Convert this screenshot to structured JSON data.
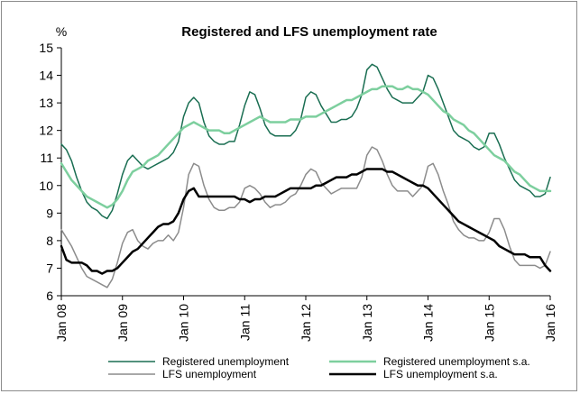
{
  "chart_data": {
    "type": "line",
    "title": "Registered and LFS unemployment rate",
    "ylabel": "%",
    "ylim": [
      6,
      15
    ],
    "yticks": [
      6,
      7,
      8,
      9,
      10,
      11,
      12,
      13,
      14,
      15
    ],
    "xlim": [
      0,
      96
    ],
    "xtick_labels": [
      "Jan 08",
      "Jan 09",
      "Jan 10",
      "Jan 11",
      "Jan 12",
      "Jan 13",
      "Jan 14",
      "Jan 15",
      "Jan 16"
    ],
    "x_unit": "months since Jan 08",
    "legend_position": "bottom",
    "series": [
      {
        "name": "Registered unemployment",
        "color": "#1a6e52",
        "width": 1.5,
        "values": [
          11.5,
          11.3,
          10.9,
          10.3,
          9.8,
          9.4,
          9.2,
          9.1,
          8.9,
          8.8,
          9.1,
          9.7,
          10.4,
          10.9,
          11.1,
          10.9,
          10.7,
          10.6,
          10.7,
          10.8,
          10.9,
          11.0,
          11.2,
          11.6,
          12.5,
          13.0,
          13.2,
          13.0,
          12.3,
          11.8,
          11.6,
          11.5,
          11.5,
          11.6,
          11.6,
          12.2,
          12.9,
          13.4,
          13.3,
          12.8,
          12.2,
          11.9,
          11.8,
          11.8,
          11.8,
          11.8,
          12.0,
          12.4,
          13.2,
          13.4,
          13.3,
          12.9,
          12.6,
          12.3,
          12.3,
          12.4,
          12.4,
          12.5,
          12.8,
          13.3,
          14.2,
          14.4,
          14.3,
          13.9,
          13.5,
          13.2,
          13.1,
          13.0,
          13.0,
          13.0,
          13.2,
          13.4,
          14.0,
          13.9,
          13.5,
          13.0,
          12.5,
          12.0,
          11.8,
          11.7,
          11.6,
          11.4,
          11.3,
          11.4,
          11.9,
          11.9,
          11.5,
          11.0,
          10.6,
          10.2,
          10.0,
          9.9,
          9.8,
          9.6,
          9.6,
          9.7,
          10.3
        ]
      },
      {
        "name": "Registered unemployment s.a.",
        "color": "#7dcf9e",
        "width": 2.5,
        "values": [
          10.8,
          10.5,
          10.2,
          10.0,
          9.8,
          9.6,
          9.5,
          9.4,
          9.3,
          9.2,
          9.3,
          9.5,
          9.8,
          10.2,
          10.5,
          10.6,
          10.7,
          10.9,
          11.0,
          11.1,
          11.3,
          11.5,
          11.7,
          11.9,
          12.1,
          12.2,
          12.3,
          12.2,
          12.1,
          12.0,
          12.0,
          12.0,
          11.9,
          11.9,
          12.0,
          12.1,
          12.2,
          12.3,
          12.4,
          12.5,
          12.4,
          12.3,
          12.3,
          12.3,
          12.3,
          12.4,
          12.4,
          12.4,
          12.5,
          12.5,
          12.5,
          12.6,
          12.7,
          12.8,
          12.9,
          13.0,
          13.1,
          13.1,
          13.2,
          13.3,
          13.4,
          13.5,
          13.5,
          13.6,
          13.6,
          13.6,
          13.5,
          13.5,
          13.6,
          13.5,
          13.5,
          13.4,
          13.3,
          13.1,
          12.9,
          12.7,
          12.6,
          12.4,
          12.3,
          12.2,
          12.0,
          11.9,
          11.7,
          11.5,
          11.3,
          11.1,
          11.0,
          10.9,
          10.7,
          10.5,
          10.4,
          10.2,
          10.0,
          9.9,
          9.8,
          9.8,
          9.8
        ]
      },
      {
        "name": "LFS unemployment",
        "color": "#8c8c8c",
        "width": 1.5,
        "values": [
          8.4,
          8.1,
          7.8,
          7.4,
          7.0,
          6.7,
          6.6,
          6.5,
          6.4,
          6.3,
          6.6,
          7.2,
          7.9,
          8.3,
          8.4,
          8.0,
          7.8,
          7.7,
          7.9,
          8.0,
          8.0,
          8.2,
          8.0,
          8.3,
          9.2,
          10.4,
          10.8,
          10.7,
          10.0,
          9.5,
          9.2,
          9.1,
          9.1,
          9.2,
          9.2,
          9.4,
          9.9,
          10.0,
          9.9,
          9.7,
          9.4,
          9.2,
          9.3,
          9.3,
          9.4,
          9.6,
          9.7,
          10.0,
          10.4,
          10.6,
          10.5,
          10.1,
          9.9,
          9.7,
          9.8,
          9.9,
          9.9,
          9.9,
          9.9,
          10.3,
          11.1,
          11.4,
          11.3,
          10.9,
          10.4,
          10.0,
          9.8,
          9.8,
          9.8,
          9.6,
          9.8,
          10.0,
          10.7,
          10.8,
          10.4,
          9.8,
          9.3,
          8.7,
          8.4,
          8.2,
          8.1,
          8.1,
          8.0,
          8.0,
          8.3,
          8.8,
          8.8,
          8.4,
          7.8,
          7.3,
          7.1,
          7.1,
          7.1,
          7.1,
          7.0,
          7.1,
          7.6
        ]
      },
      {
        "name": "LFS unemployment s.a.",
        "color": "#000000",
        "width": 2.5,
        "values": [
          7.8,
          7.3,
          7.2,
          7.2,
          7.2,
          7.1,
          6.9,
          6.9,
          6.8,
          6.9,
          6.9,
          7.0,
          7.2,
          7.4,
          7.6,
          7.7,
          7.9,
          8.1,
          8.3,
          8.5,
          8.6,
          8.6,
          8.7,
          9.0,
          9.5,
          9.8,
          9.9,
          9.6,
          9.6,
          9.6,
          9.6,
          9.6,
          9.6,
          9.6,
          9.6,
          9.5,
          9.5,
          9.4,
          9.5,
          9.5,
          9.6,
          9.6,
          9.6,
          9.7,
          9.8,
          9.9,
          9.9,
          9.9,
          9.9,
          9.9,
          10.0,
          10.0,
          10.1,
          10.2,
          10.3,
          10.3,
          10.3,
          10.4,
          10.4,
          10.5,
          10.6,
          10.6,
          10.6,
          10.6,
          10.5,
          10.5,
          10.4,
          10.3,
          10.2,
          10.1,
          10.0,
          10.0,
          9.9,
          9.7,
          9.5,
          9.3,
          9.1,
          8.9,
          8.7,
          8.6,
          8.5,
          8.4,
          8.3,
          8.2,
          8.1,
          8.0,
          7.8,
          7.7,
          7.6,
          7.5,
          7.5,
          7.5,
          7.4,
          7.4,
          7.4,
          7.1,
          6.9
        ]
      }
    ]
  }
}
